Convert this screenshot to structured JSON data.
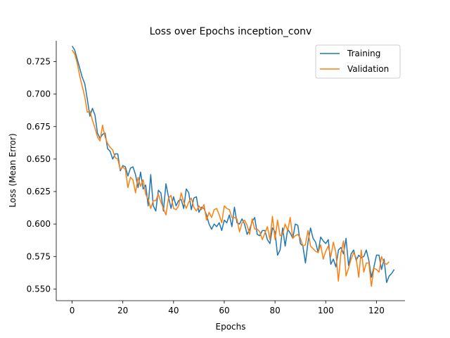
{
  "chart_data": {
    "type": "line",
    "title": "Loss over Epochs inception_conv",
    "xlabel": "Epochs",
    "ylabel": "Loss (Mean Error)",
    "xlim": [
      -6.25,
      131.25
    ],
    "ylim": [
      0.541,
      0.741
    ],
    "xticks": [
      0,
      20,
      40,
      60,
      80,
      100,
      120
    ],
    "yticks": [
      0.55,
      0.575,
      0.6,
      0.625,
      0.65,
      0.675,
      0.7,
      0.725
    ],
    "ytick_labels": [
      "0.550",
      "0.575",
      "0.600",
      "0.625",
      "0.650",
      "0.675",
      "0.700",
      "0.725"
    ],
    "xtick_labels": [
      "0",
      "20",
      "40",
      "60",
      "80",
      "100",
      "120"
    ],
    "grid": false,
    "legend_position": "top-right",
    "series": [
      {
        "name": "Training",
        "color": "#1f77b4",
        "values": [
          0.737,
          0.734,
          0.727,
          0.72,
          0.713,
          0.708,
          0.696,
          0.683,
          0.689,
          0.684,
          0.67,
          0.666,
          0.669,
          0.67,
          0.658,
          0.656,
          0.65,
          0.654,
          0.654,
          0.641,
          0.645,
          0.644,
          0.637,
          0.643,
          0.644,
          0.638,
          0.628,
          0.64,
          0.627,
          0.63,
          0.614,
          0.638,
          0.614,
          0.61,
          0.626,
          0.624,
          0.61,
          0.631,
          0.621,
          0.612,
          0.621,
          0.614,
          0.618,
          0.619,
          0.612,
          0.627,
          0.624,
          0.611,
          0.62,
          0.621,
          0.609,
          0.613,
          0.612,
          0.607,
          0.6,
          0.596,
          0.6,
          0.598,
          0.601,
          0.595,
          0.603,
          0.601,
          0.607,
          0.598,
          0.613,
          0.601,
          0.6,
          0.604,
          0.6,
          0.592,
          0.596,
          0.602,
          0.605,
          0.592,
          0.591,
          0.595,
          0.595,
          0.588,
          0.585,
          0.597,
          0.594,
          0.576,
          0.58,
          0.597,
          0.583,
          0.596,
          0.593,
          0.589,
          0.6,
          0.599,
          0.585,
          0.583,
          0.57,
          0.586,
          0.597,
          0.589,
          0.586,
          0.578,
          0.59,
          0.587,
          0.585,
          0.588,
          0.569,
          0.573,
          0.567,
          0.58,
          0.582,
          0.577,
          0.589,
          0.568,
          0.577,
          0.58,
          0.572,
          0.576,
          0.574,
          0.575,
          0.58,
          0.572,
          0.559,
          0.567,
          0.576,
          0.576,
          0.565,
          0.573,
          0.555,
          0.56,
          0.562,
          0.565
        ],
        "values_note": ""
      },
      {
        "name": "Validation",
        "color": "#ff7f0e",
        "values": [
          0.734,
          0.731,
          0.724,
          0.714,
          0.706,
          0.698,
          0.686,
          0.687,
          0.68,
          0.674,
          0.667,
          0.664,
          0.676,
          0.667,
          0.662,
          0.659,
          0.657,
          0.651,
          0.65,
          0.642,
          0.644,
          0.642,
          0.628,
          0.636,
          0.634,
          0.624,
          0.636,
          0.629,
          0.634,
          0.623,
          0.619,
          0.612,
          0.618,
          0.618,
          0.623,
          0.617,
          0.612,
          0.607,
          0.62,
          0.622,
          0.612,
          0.611,
          0.614,
          0.624,
          0.617,
          0.612,
          0.617,
          0.62,
          0.613,
          0.61,
          0.614,
          0.611,
          0.615,
          0.603,
          0.609,
          0.605,
          0.611,
          0.612,
          0.607,
          0.601,
          0.614,
          0.612,
          0.611,
          0.605,
          0.605,
          0.604,
          0.594,
          0.601,
          0.603,
          0.599,
          0.592,
          0.604,
          0.596,
          0.596,
          0.594,
          0.588,
          0.593,
          0.598,
          0.588,
          0.606,
          0.588,
          0.603,
          0.591,
          0.592,
          0.6,
          0.595,
          0.605,
          0.589,
          0.591,
          0.592,
          0.589,
          0.583,
          0.584,
          0.595,
          0.583,
          0.581,
          0.579,
          0.578,
          0.584,
          0.573,
          0.579,
          0.583,
          0.575,
          0.586,
          0.578,
          0.556,
          0.578,
          0.587,
          0.56,
          0.566,
          0.573,
          0.578,
          0.574,
          0.559,
          0.58,
          0.563,
          0.57,
          0.57,
          0.552,
          0.566,
          0.565,
          0.563,
          0.575,
          0.57,
          0.569,
          0.571
        ],
        "values_note": ""
      }
    ]
  }
}
